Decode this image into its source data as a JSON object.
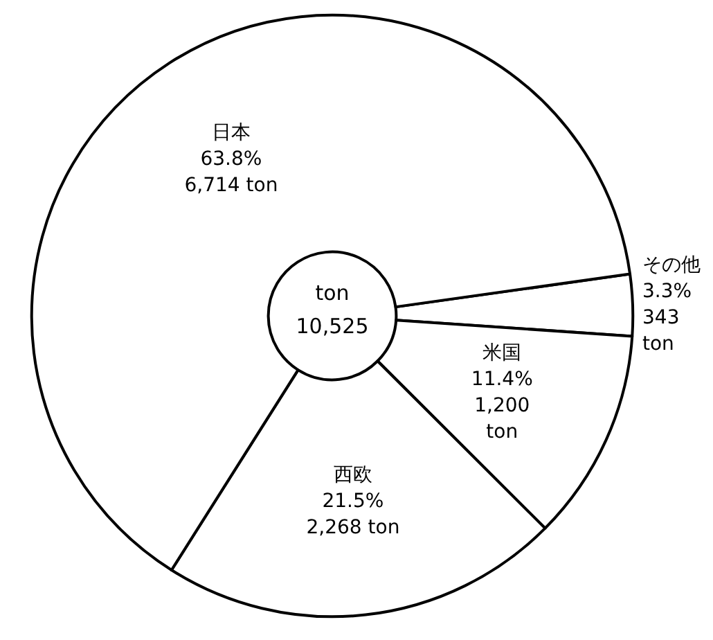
{
  "chart_data": {
    "type": "pie",
    "categories": [
      "その他",
      "米国",
      "西欧",
      "日本"
    ],
    "values": [
      3.3,
      11.4,
      21.5,
      63.8
    ],
    "value_labels": [
      "3.3%\n343\nton",
      "11.4%\n1,200\nton",
      "21.5%\n2,268 ton",
      "63.8%\n6,714 ton"
    ],
    "colors": [
      "#ffffff",
      "#ffffff",
      "#ffffff",
      "#ffffff"
    ],
    "annotations": [
      "ton",
      "10,525"
    ]
  }
}
